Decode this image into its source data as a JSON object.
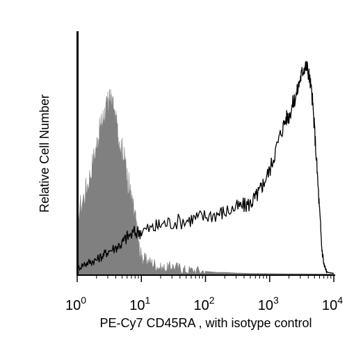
{
  "chart_data": {
    "type": "area",
    "title": "",
    "xlabel": "PE-Cy7 CD45RA , with isotype control",
    "ylabel": "Relative Cell Number",
    "x_scale": "log",
    "xlim": [
      1,
      10000
    ],
    "x_ticks": [
      {
        "base": "10",
        "exp": "0",
        "value": 1
      },
      {
        "base": "10",
        "exp": "1",
        "value": 10
      },
      {
        "base": "10",
        "exp": "2",
        "value": 100
      },
      {
        "base": "10",
        "exp": "3",
        "value": 1000
      },
      {
        "base": "10",
        "exp": "4",
        "value": 10000
      }
    ],
    "ylim": [
      0,
      100
    ],
    "grid": false,
    "legend": "none",
    "series": [
      {
        "style": "filled",
        "color": "#808080",
        "x": [
          1.0,
          1.3,
          1.6,
          2.0,
          2.3,
          2.6,
          2.9,
          3.1,
          3.3,
          3.6,
          4.0,
          4.4,
          5.0,
          5.5,
          6.0,
          6.6,
          7.2,
          8.0,
          8.7,
          9.5,
          11,
          13,
          16,
          20,
          25,
          30,
          40,
          50,
          70,
          100,
          150,
          200,
          300,
          500,
          1000,
          3000,
          10000
        ],
        "y": [
          28,
          38,
          48,
          62,
          70,
          76,
          80,
          82,
          83,
          80,
          72,
          66,
          60,
          54,
          47,
          40,
          33,
          26,
          18,
          10,
          7,
          6,
          5,
          3,
          3,
          4,
          3,
          2,
          2,
          1.5,
          1,
          1,
          0.7,
          0.5,
          0.4,
          0.3,
          0.2
        ]
      },
      {
        "style": "outline",
        "color": "#000000",
        "x": [
          1.0,
          1.3,
          1.6,
          2.0,
          2.5,
          3.0,
          4.0,
          5.0,
          6.0,
          8.0,
          10,
          15,
          20,
          30,
          50,
          70,
          100,
          150,
          200,
          300,
          400,
          500,
          600,
          700,
          800,
          1000,
          1200,
          1500,
          1800,
          2000,
          2300,
          2600,
          3000,
          3300,
          3600,
          3900,
          4200,
          4600,
          5000,
          5500,
          6000,
          6500,
          7000,
          7500,
          8000,
          10000
        ],
        "y": [
          3,
          5,
          6,
          7,
          9,
          11,
          13,
          15,
          18,
          20,
          21,
          22,
          24,
          25,
          26,
          27,
          28,
          29,
          30,
          32,
          33,
          34,
          37,
          40,
          44,
          50,
          58,
          68,
          75,
          76,
          82,
          86,
          94,
          98,
          100,
          99,
          94,
          85,
          70,
          50,
          30,
          13,
          5,
          2,
          1,
          0.5
        ]
      }
    ]
  }
}
